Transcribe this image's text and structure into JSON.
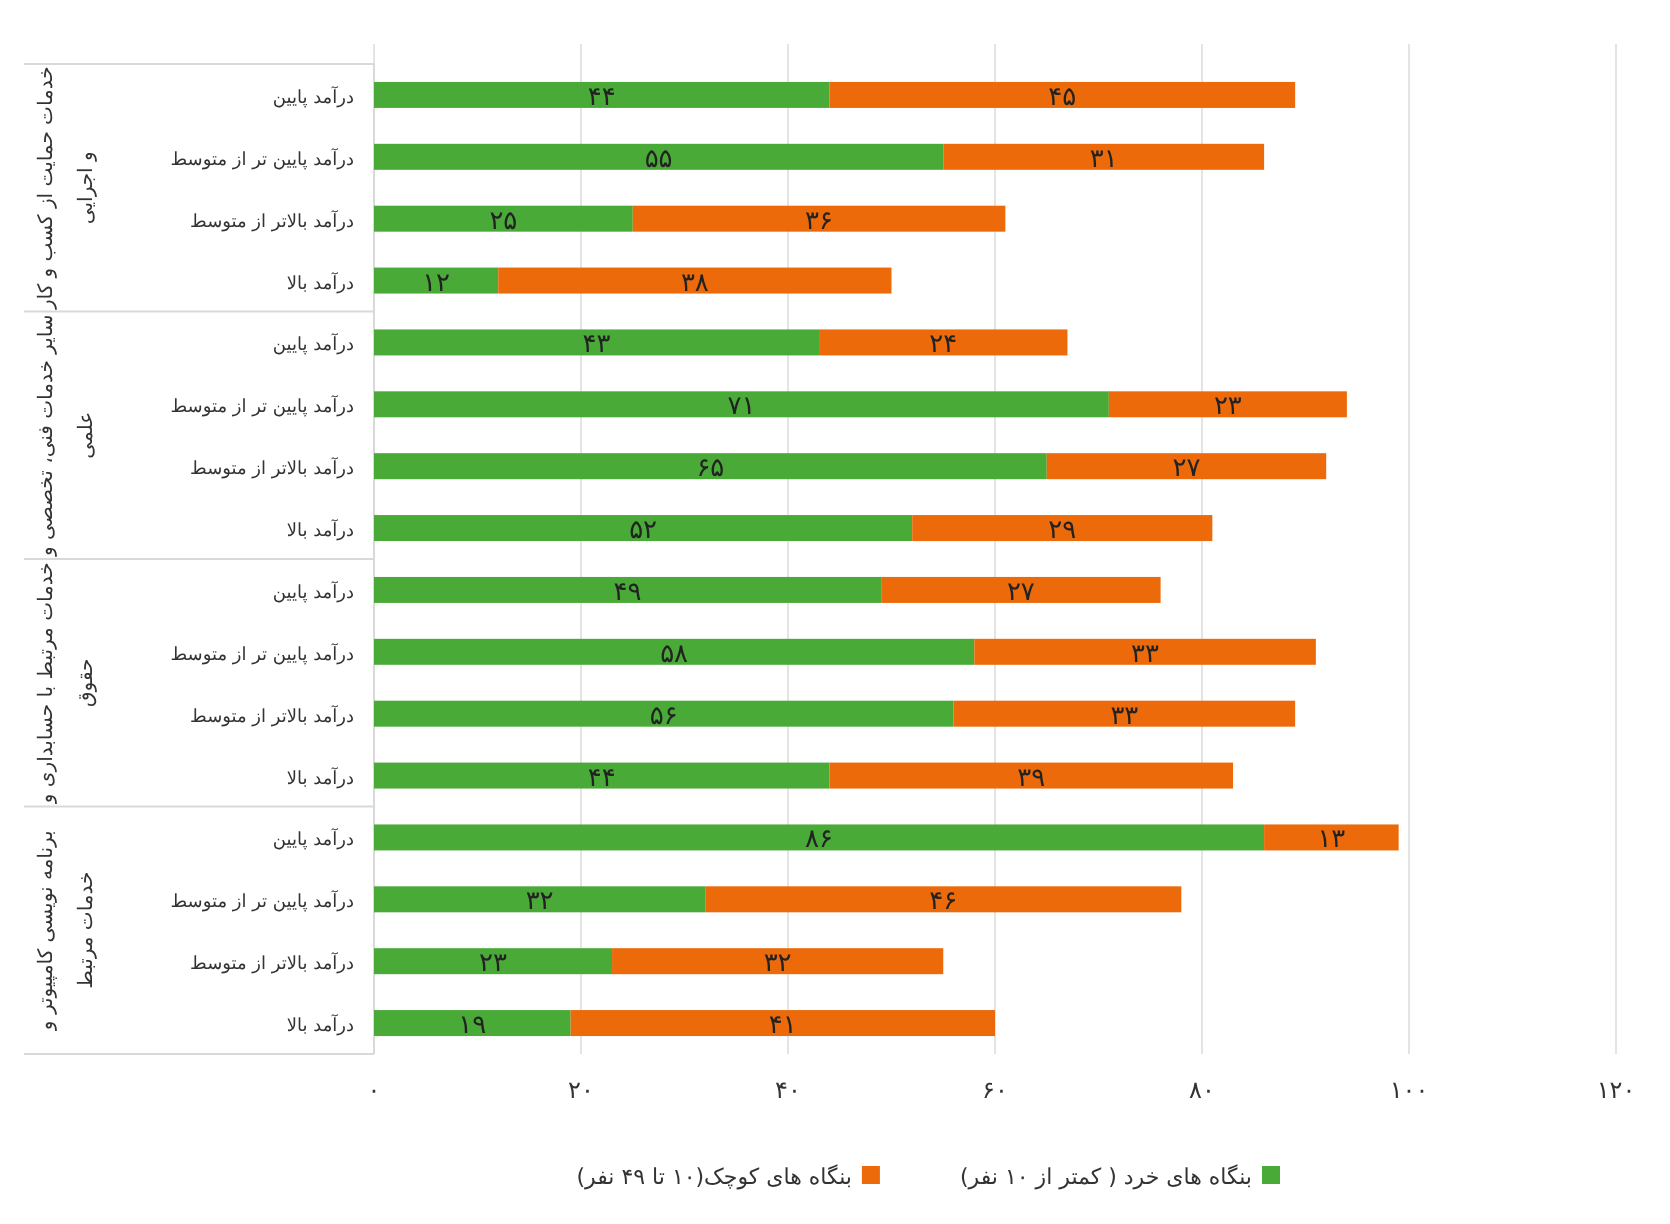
{
  "chart_data": {
    "type": "bar",
    "orientation": "horizontal",
    "stacked": true,
    "grid": "x",
    "legend": "bottom",
    "categories": [
      "درآمد پایین",
      "درآمد پایین تر از متوسط",
      "درآمد بالاتر از متوسط",
      "درآمد بالا",
      "درآمد پایین",
      "درآمد پایین تر از متوسط",
      "درآمد بالاتر از متوسط",
      "درآمد بالا",
      "درآمد پایین",
      "درآمد پایین تر از متوسط",
      "درآمد بالاتر از متوسط",
      "درآمد بالا",
      "درآمد پایین",
      "درآمد پایین تر از متوسط",
      "درآمد بالاتر از متوسط",
      "درآمد بالا"
    ],
    "series": [
      {
        "name": "بنگاه های خرد ( کمتر از ۱۰ نفر)",
        "color": "#4aaa38",
        "values": [
          44,
          55,
          25,
          12,
          43,
          71,
          65,
          52,
          49,
          58,
          56,
          44,
          86,
          32,
          23,
          19
        ],
        "value_labels": [
          "۴۴",
          "۵۵",
          "۲۵",
          "۱۲",
          "۴۳",
          "۷۱",
          "۶۵",
          "۵۲",
          "۴۹",
          "۵۸",
          "۵۶",
          "۴۴",
          "۸۶",
          "۳۲",
          "۲۳",
          "۱۹"
        ]
      },
      {
        "name": "بنگاه های کوچک(۱۰ تا ۴۹ نفر)",
        "color": "#ec6a0a",
        "values": [
          45,
          31,
          36,
          38,
          24,
          23,
          27,
          29,
          27,
          33,
          33,
          39,
          13,
          46,
          32,
          41
        ],
        "value_labels": [
          "۴۵",
          "۳۱",
          "۳۶",
          "۳۸",
          "۲۴",
          "۲۳",
          "۲۷",
          "۲۹",
          "۲۷",
          "۳۳",
          "۳۳",
          "۳۹",
          "۱۳",
          "۴۶",
          "۳۲",
          "۴۱"
        ]
      }
    ],
    "xlim": [
      0,
      120
    ],
    "xticks": [
      {
        "value": 0,
        "label": "۰"
      },
      {
        "value": 20,
        "label": "۲۰"
      },
      {
        "value": 40,
        "label": "۴۰"
      },
      {
        "value": 60,
        "label": "۶۰"
      },
      {
        "value": 80,
        "label": "۸۰"
      },
      {
        "value": 100,
        "label": "۱۰۰"
      },
      {
        "value": 120,
        "label": "۱۲۰"
      }
    ],
    "annotations": [
      "خدمات حمایت از کسب و کار\nو اجرایی",
      "سایر خدمات فنی، تخصصی و\nعلمی",
      "خدمات مرتبط با حسابداری و\nحقوق",
      "برنامه نویسی کامپیوتر و\nخدمات مرتبط"
    ]
  }
}
